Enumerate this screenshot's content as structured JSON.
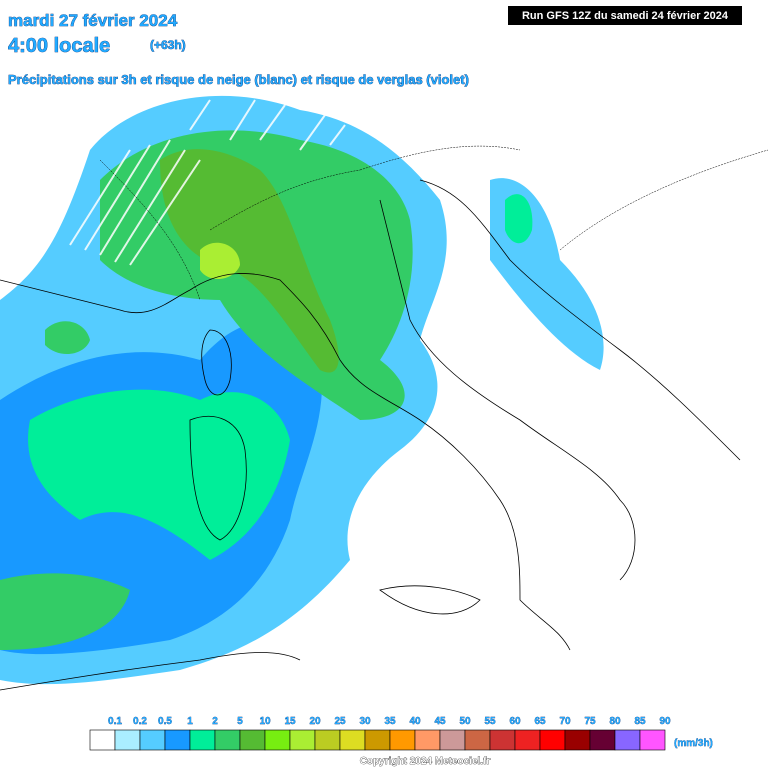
{
  "header": {
    "date": "mardi 27 février 2024",
    "time": "4:00 locale",
    "lead": "(+63h)",
    "subtitle": "Précipitations sur 3h et risque de neige (blanc) et risque de verglas (violet)",
    "run": "Run GFS 12Z du samedi 24 février 2024"
  },
  "legend": {
    "labels": [
      "0.1",
      "0.2",
      "0.5",
      "1",
      "2",
      "5",
      "10",
      "15",
      "20",
      "25",
      "30",
      "35",
      "40",
      "45",
      "50",
      "55",
      "60",
      "65",
      "70",
      "75",
      "80",
      "85",
      "90"
    ],
    "colors": [
      "#ffffff",
      "#aaeeff",
      "#55ccff",
      "#1899ff",
      "#00ee99",
      "#33cc66",
      "#55bb33",
      "#77ee11",
      "#aaee33",
      "#bbcc22",
      "#dddd22",
      "#cc9900",
      "#ff9900",
      "#ff9966",
      "#cc9999",
      "#cc6644",
      "#cc3333",
      "#ee2222",
      "#ff0000",
      "#990000",
      "#660033",
      "#8866ff",
      "#ff55ff"
    ],
    "unit": "(mm/3h)"
  },
  "footer": {
    "copyright": "Copyright 2024 Meteociel.fr"
  }
}
